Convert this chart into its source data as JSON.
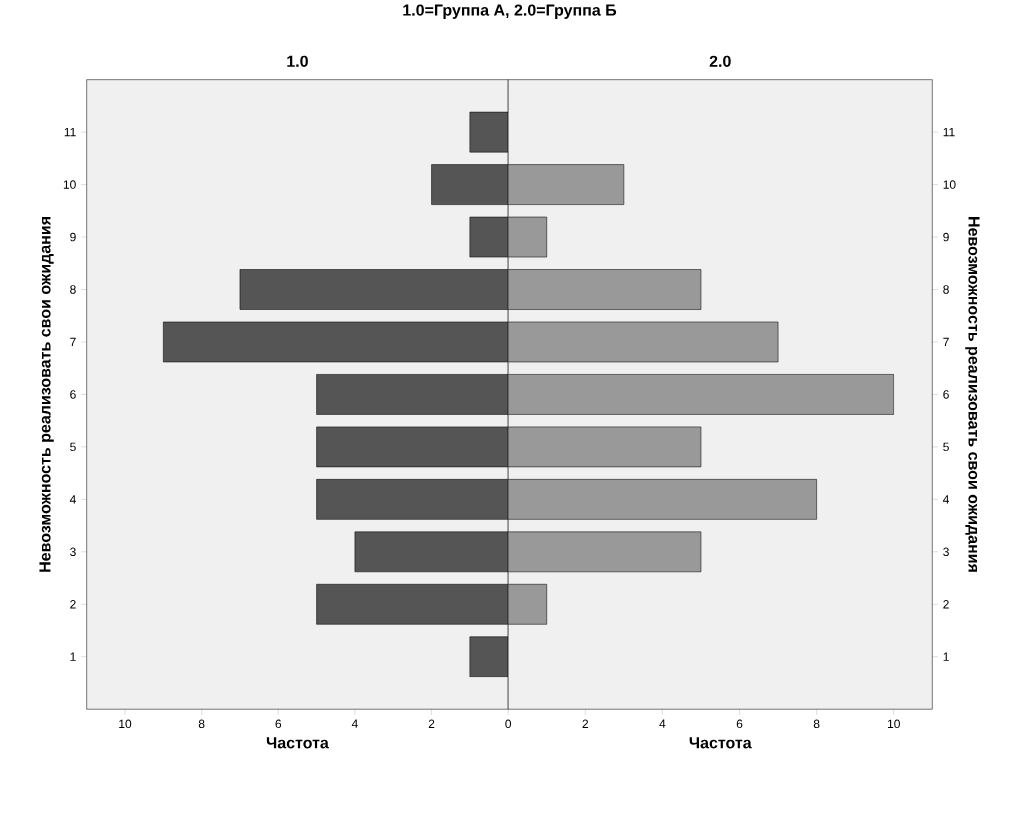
{
  "chart_data": [
    {
      "type": "bar",
      "orientation": "horizontal",
      "title": "1.0=Группа А,  2.0=Группа Б",
      "subtitle": "1.0",
      "categories": [
        "11",
        "10",
        "9",
        "8",
        "7",
        "6",
        "5",
        "4",
        "3",
        "2",
        "1"
      ],
      "values": [
        1,
        2,
        1,
        7,
        9,
        5,
        5,
        5,
        4,
        5,
        1
      ],
      "color": "#555555",
      "xlim": [
        11,
        0
      ],
      "xticks": [
        10,
        8,
        6,
        4,
        2
      ],
      "xlabel": "Частота",
      "ylabel": "Невозможность реализовать свои ожидания",
      "grid": false
    },
    {
      "type": "bar",
      "orientation": "horizontal",
      "subtitle": "2.0",
      "categories": [
        "11",
        "10",
        "9",
        "8",
        "7",
        "6",
        "5",
        "4",
        "3",
        "2",
        "1"
      ],
      "values": [
        null,
        3,
        1,
        5,
        7,
        10,
        5,
        8,
        5,
        1,
        null
      ],
      "color": "#999999",
      "xlim": [
        0,
        11
      ],
      "xticks": [
        0,
        2,
        4,
        6,
        8,
        10
      ],
      "xlabel": "Частота",
      "ylabel": "Невозможность реализовать свои ожидания",
      "grid": false
    }
  ]
}
